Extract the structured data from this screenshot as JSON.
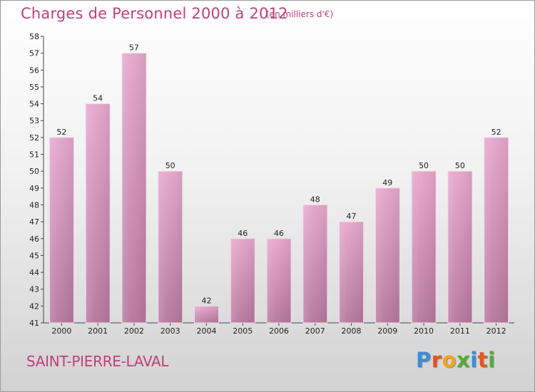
{
  "header": {
    "title": "Charges de Personnel 2000 à 2012",
    "subtitle": "(en milliers d'€)"
  },
  "footer": {
    "place": "SAINT-PIERRE-LAVAL",
    "logo_letters": [
      {
        "char": "P",
        "color": "#3a8fd6"
      },
      {
        "char": "r",
        "color": "#e2561f"
      },
      {
        "char": "o",
        "color": "#f2a51a"
      },
      {
        "char": "x",
        "color": "#4fae3a"
      },
      {
        "char": "i",
        "color": "#3a8fd6"
      },
      {
        "char": "t",
        "color": "#e2561f"
      },
      {
        "char": "i",
        "color": "#4fae3a"
      }
    ]
  },
  "colors": {
    "title": "#c0407a",
    "bar_top": "#e5a6cb",
    "bar_bottom": "#b5779d"
  },
  "chart_data": {
    "type": "bar",
    "categories": [
      "2000",
      "2001",
      "2002",
      "2003",
      "2004",
      "2005",
      "2006",
      "2007",
      "2008",
      "2009",
      "2010",
      "2011",
      "2012"
    ],
    "values": [
      52,
      54,
      57,
      50,
      42,
      46,
      46,
      48,
      47,
      49,
      50,
      50,
      52
    ],
    "ylim": [
      41,
      58
    ],
    "yticks": [
      41,
      42,
      43,
      44,
      45,
      46,
      47,
      48,
      49,
      50,
      51,
      52,
      53,
      54,
      55,
      56,
      57,
      58
    ],
    "xlabel": "",
    "ylabel": "",
    "grid": false
  }
}
